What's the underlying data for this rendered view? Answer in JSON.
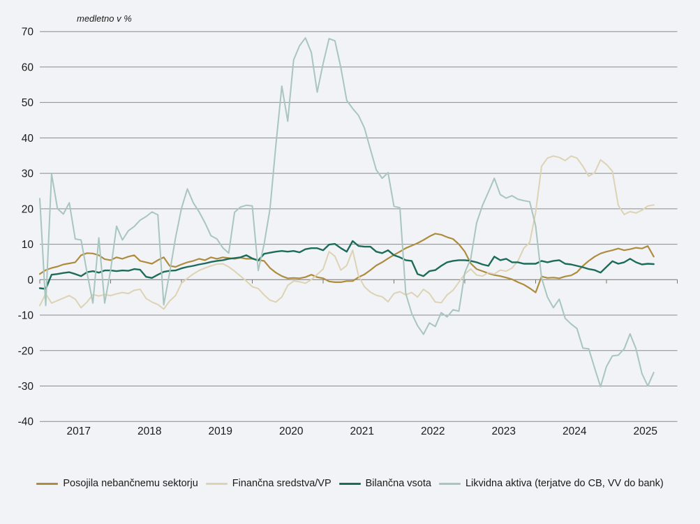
{
  "title": "medletno v %",
  "legend": [
    {
      "label": "Posojila nebančnemu sektorju",
      "color": "#ae8c3e"
    },
    {
      "label": "Finančna sredstva/VP",
      "color": "#ddd3b4"
    },
    {
      "label": "Bilančna vsota",
      "color": "#1d6b5a"
    },
    {
      "label": "Likvidna aktiva (terjatve do CB, VV do bank)",
      "color": "#a8c5be"
    }
  ],
  "axis": {
    "yticks": [
      70,
      60,
      50,
      40,
      30,
      20,
      10,
      0,
      -10,
      -20,
      -30,
      -40
    ],
    "year_labels": [
      "2017",
      "2018",
      "2019",
      "2020",
      "2021",
      "2022",
      "2023",
      "2024",
      "2025"
    ]
  },
  "colors": {
    "background": "#f1f3f6",
    "gridline": "#8a8a8a",
    "zero_line": "#757575",
    "axis_text": "#1a1a1a"
  },
  "chart_data": {
    "type": "line",
    "title": "medletno v %",
    "frequency": "monthly",
    "x_start": "2017-01",
    "x_end": "2025-09",
    "ylim": [
      -40,
      70
    ],
    "yticks": [
      70,
      60,
      50,
      40,
      30,
      20,
      10,
      0,
      -10,
      -20,
      -30,
      -40
    ],
    "grid": "horizontal",
    "legend_position": "bottom",
    "categories_years": [
      "2017",
      "2018",
      "2019",
      "2020",
      "2021",
      "2022",
      "2023",
      "2024",
      "2025"
    ],
    "series": [
      {
        "name": "Posojila nebančnemu sektorju",
        "color": "#ae8c3e",
        "width": 2.2,
        "values": [
          1.6,
          2.7,
          3.3,
          3.7,
          4.3,
          4.6,
          4.9,
          6.9,
          7.5,
          7.4,
          6.9,
          5.8,
          5.5,
          6.3,
          5.9,
          6.5,
          6.9,
          5.3,
          4.9,
          4.5,
          5.5,
          6.3,
          3.9,
          3.6,
          4.3,
          4.9,
          5.3,
          5.9,
          5.5,
          6.3,
          5.9,
          6.3,
          6.1,
          5.9,
          6.2,
          5.9,
          5.9,
          5.5,
          5.3,
          3.3,
          2.0,
          1.0,
          0.4,
          0.5,
          0.4,
          0.7,
          1.4,
          0.7,
          0.4,
          -0.5,
          -0.7,
          -0.7,
          -0.4,
          -0.4,
          0.7,
          1.5,
          2.7,
          4.0,
          4.9,
          6.0,
          7.0,
          7.9,
          8.9,
          9.6,
          10.3,
          11.2,
          12.2,
          13.0,
          12.7,
          12.0,
          11.5,
          10.0,
          7.9,
          4.6,
          3.0,
          2.4,
          1.8,
          1.3,
          1.0,
          0.6,
          0.1,
          -0.7,
          -1.4,
          -2.4,
          -3.6,
          0.9,
          0.5,
          0.6,
          0.4,
          0.9,
          1.2,
          2.1,
          3.9,
          5.3,
          6.5,
          7.4,
          7.9,
          8.3,
          8.8,
          8.3,
          8.6,
          9.0,
          8.8,
          9.5,
          6.5
        ]
      },
      {
        "name": "Finančna sredstva/VP",
        "color": "#ddd3b4",
        "width": 2.0,
        "values": [
          -7.3,
          -4.0,
          -6.6,
          -5.9,
          -5.2,
          -4.5,
          -5.5,
          -7.9,
          -6.3,
          -4.2,
          -4.6,
          -4.2,
          -4.5,
          -4.0,
          -3.6,
          -3.9,
          -3.0,
          -2.7,
          -5.3,
          -6.3,
          -7.0,
          -8.3,
          -6.0,
          -4.5,
          -1.0,
          0.4,
          1.6,
          2.6,
          3.3,
          3.9,
          4.4,
          4.5,
          3.6,
          2.4,
          1.0,
          -0.4,
          -2.0,
          -2.5,
          -4.3,
          -5.8,
          -6.3,
          -4.9,
          -1.6,
          -0.4,
          -0.6,
          -1.0,
          0.0,
          1.5,
          3.0,
          7.9,
          6.6,
          2.7,
          4.0,
          8.3,
          1.0,
          -2.0,
          -3.5,
          -4.4,
          -4.8,
          -6.2,
          -3.9,
          -3.4,
          -4.3,
          -3.6,
          -4.9,
          -2.7,
          -3.9,
          -6.3,
          -6.5,
          -4.3,
          -3.0,
          -0.7,
          1.6,
          3.0,
          1.3,
          1.0,
          2.0,
          1.6,
          2.7,
          2.4,
          3.3,
          5.3,
          8.9,
          10.5,
          19.0,
          32.0,
          34.3,
          34.9,
          34.5,
          33.6,
          34.9,
          34.3,
          32.0,
          29.2,
          30.2,
          33.8,
          32.5,
          30.6,
          21.0,
          18.4,
          19.2,
          18.8,
          19.6,
          20.8,
          21.1
        ]
      },
      {
        "name": "Bilančna vsota",
        "color": "#1d6b5a",
        "width": 2.4,
        "values": [
          -2.4,
          -2.6,
          1.4,
          1.6,
          1.9,
          2.1,
          1.6,
          1.0,
          2.1,
          2.4,
          2.0,
          2.6,
          2.6,
          2.4,
          2.6,
          2.5,
          3.0,
          2.8,
          0.8,
          0.5,
          1.4,
          2.2,
          2.5,
          2.6,
          3.2,
          3.6,
          3.9,
          4.3,
          4.6,
          5.0,
          5.3,
          5.5,
          5.9,
          6.1,
          6.3,
          6.9,
          6.0,
          5.4,
          7.3,
          7.6,
          7.9,
          8.1,
          7.9,
          8.1,
          7.7,
          8.6,
          8.9,
          8.9,
          8.3,
          9.9,
          10.1,
          8.9,
          7.9,
          10.9,
          9.5,
          9.3,
          9.3,
          7.9,
          7.5,
          8.3,
          6.9,
          6.3,
          5.5,
          5.3,
          1.6,
          1.0,
          2.4,
          2.7,
          3.9,
          4.9,
          5.3,
          5.5,
          5.5,
          5.3,
          4.9,
          4.3,
          3.9,
          6.5,
          5.5,
          5.9,
          4.9,
          4.9,
          4.5,
          4.5,
          4.5,
          5.3,
          4.9,
          5.3,
          5.5,
          4.5,
          4.3,
          3.9,
          3.5,
          3.0,
          2.7,
          2.0,
          3.6,
          5.2,
          4.5,
          4.9,
          5.9,
          4.9,
          4.3,
          4.5,
          4.4
        ]
      },
      {
        "name": "Likvidna aktiva (terjatve do CB, VV do bank)",
        "color": "#a8c5be",
        "width": 2.0,
        "values": [
          22.9,
          -7.3,
          29.8,
          20.0,
          18.5,
          21.7,
          11.5,
          11.2,
          2.0,
          -6.6,
          11.8,
          -6.6,
          2.6,
          15.1,
          11.2,
          13.8,
          15.0,
          16.8,
          17.8,
          19.1,
          18.3,
          -7.1,
          2.0,
          11.8,
          20.1,
          25.6,
          21.7,
          19.1,
          16.0,
          12.4,
          11.5,
          9.0,
          7.5,
          19.0,
          20.5,
          21.0,
          20.8,
          2.6,
          10.0,
          20.0,
          38.0,
          54.6,
          44.7,
          62.0,
          66.0,
          68.2,
          64.1,
          52.9,
          61.0,
          68.0,
          67.4,
          59.8,
          50.6,
          48.3,
          46.3,
          42.8,
          36.8,
          31.0,
          28.6,
          30.2,
          20.7,
          20.3,
          -3.9,
          -9.5,
          -13.0,
          -15.4,
          -12.2,
          -13.2,
          -9.3,
          -10.5,
          -8.5,
          -8.9,
          2.0,
          5.9,
          16.0,
          21.0,
          24.7,
          28.6,
          24.0,
          23.0,
          23.7,
          22.7,
          22.3,
          22.0,
          15.2,
          0.5,
          -4.9,
          -7.9,
          -5.5,
          -10.9,
          -12.5,
          -13.8,
          -19.3,
          -19.5,
          -25.0,
          -30.2,
          -24.5,
          -21.5,
          -21.3,
          -19.5,
          -15.3,
          -19.5,
          -26.5,
          -30.0,
          -26.2
        ]
      }
    ]
  }
}
